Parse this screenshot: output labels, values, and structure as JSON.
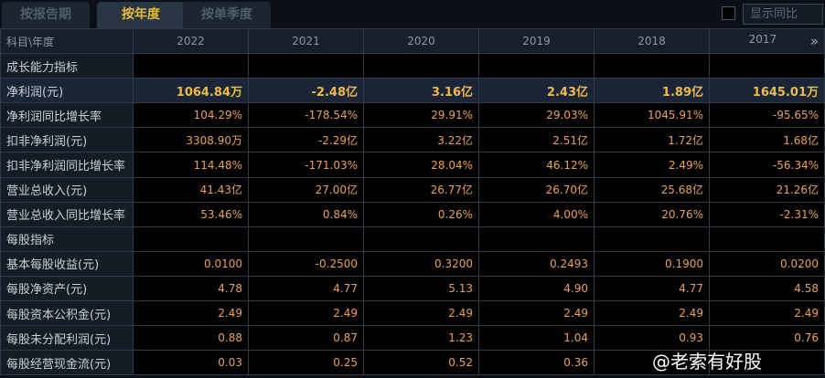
{
  "tabs": [
    {
      "label": "按报告期"
    },
    {
      "label": "按年度"
    },
    {
      "label": "按单季度"
    }
  ],
  "active_tab": "按年度",
  "show_yoy_label": "显示同比",
  "header": {
    "label": "科目\\年度",
    "years": [
      "2022",
      "2021",
      "2020",
      "2019",
      "2018",
      "2017"
    ],
    "more_icon": "»"
  },
  "rows": [
    {
      "label": "成长能力指标",
      "section": true,
      "values": [
        "",
        "",
        "",
        "",
        "",
        ""
      ]
    },
    {
      "label": "净利润(元)",
      "highlight": true,
      "values": [
        "1064.84万",
        "-2.48亿",
        "3.16亿",
        "2.43亿",
        "1.89亿",
        "1645.01万"
      ]
    },
    {
      "label": "净利润同比增长率",
      "values": [
        "104.29%",
        "-178.54%",
        "29.91%",
        "29.03%",
        "1045.91%",
        "-95.65%"
      ]
    },
    {
      "label": "扣非净利润(元)",
      "values": [
        "3308.90万",
        "-2.29亿",
        "3.22亿",
        "2.51亿",
        "1.72亿",
        "1.68亿"
      ]
    },
    {
      "label": "扣非净利润同比增长率",
      "values": [
        "114.48%",
        "-171.03%",
        "28.04%",
        "46.12%",
        "2.49%",
        "-56.34%"
      ]
    },
    {
      "label": "营业总收入(元)",
      "values": [
        "41.43亿",
        "27.00亿",
        "26.77亿",
        "26.70亿",
        "25.68亿",
        "21.26亿"
      ]
    },
    {
      "label": "营业总收入同比增长率",
      "values": [
        "53.46%",
        "0.84%",
        "0.26%",
        "4.00%",
        "20.76%",
        "-2.31%"
      ]
    },
    {
      "label": "每股指标",
      "section": true,
      "values": [
        "",
        "",
        "",
        "",
        "",
        ""
      ]
    },
    {
      "label": "基本每股收益(元)",
      "values": [
        "0.0100",
        "-0.2500",
        "0.3200",
        "0.2493",
        "0.1900",
        "0.0200"
      ]
    },
    {
      "label": "每股净资产(元)",
      "values": [
        "4.78",
        "4.77",
        "5.13",
        "4.90",
        "4.77",
        "4.58"
      ]
    },
    {
      "label": "每股资本公积金(元)",
      "values": [
        "2.49",
        "2.49",
        "2.49",
        "2.49",
        "2.49",
        "2.49"
      ]
    },
    {
      "label": "每股未分配利润(元)",
      "values": [
        "0.88",
        "0.87",
        "1.23",
        "1.04",
        "0.93",
        "0.76"
      ]
    },
    {
      "label": "每股经营现金流(元)",
      "values": [
        "0.03",
        "0.25",
        "0.52",
        "0.36",
        "",
        ""
      ]
    }
  ],
  "watermark": "@老索有好股"
}
